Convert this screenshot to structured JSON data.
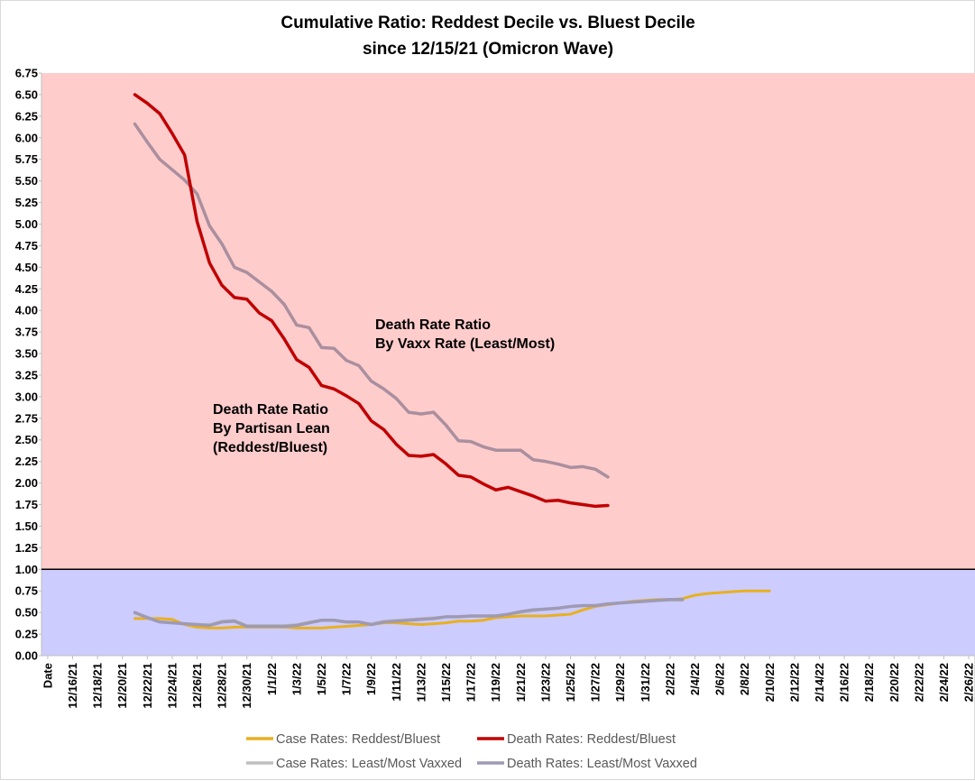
{
  "chart_data": {
    "type": "line",
    "title_line1": "Cumulative Ratio: Reddest Decile vs. Bluest Decile",
    "title_line2": "since 12/15/21 (Omicron Wave)",
    "ylim": [
      0,
      6.75
    ],
    "y_ticks": [
      "0.00",
      "0.25",
      "0.50",
      "0.75",
      "1.00",
      "1.25",
      "1.50",
      "1.75",
      "2.00",
      "2.25",
      "2.50",
      "2.75",
      "3.00",
      "3.25",
      "3.50",
      "3.75",
      "4.00",
      "4.25",
      "4.50",
      "4.75",
      "5.00",
      "5.25",
      "5.50",
      "5.75",
      "6.00",
      "6.25",
      "6.50",
      "6.75"
    ],
    "x_tick_labels": [
      "Date",
      "12/16/21",
      "12/18/21",
      "12/20/21",
      "12/22/21",
      "12/24/21",
      "12/26/21",
      "12/28/21",
      "12/30/21",
      "1/1/22",
      "1/3/22",
      "1/5/22",
      "1/7/22",
      "1/9/22",
      "1/11/22",
      "1/13/22",
      "1/15/22",
      "1/17/22",
      "1/19/22",
      "1/21/22",
      "1/23/22",
      "1/25/22",
      "1/27/22",
      "1/29/22",
      "1/31/22",
      "2/2/22",
      "2/4/22",
      "2/6/22",
      "2/8/22",
      "2/10/22",
      "2/12/22",
      "2/14/22",
      "2/16/22",
      "2/18/22",
      "2/20/22",
      "2/22/22",
      "2/24/22",
      "2/26/22"
    ],
    "category_count": 75,
    "threshold": 1.0,
    "region_colors": {
      "above": "#ffcccc",
      "below": "#ccccff"
    },
    "series": [
      {
        "name": "Case Rates: Reddest/Bluest",
        "color": "#e8b020",
        "start_index": 7,
        "values": [
          0.43,
          0.43,
          0.43,
          0.42,
          0.36,
          0.33,
          0.32,
          0.32,
          0.33,
          0.33,
          0.33,
          0.33,
          0.33,
          0.32,
          0.32,
          0.32,
          0.33,
          0.34,
          0.35,
          0.36,
          0.38,
          0.38,
          0.37,
          0.36,
          0.37,
          0.38,
          0.4,
          0.4,
          0.41,
          0.44,
          0.45,
          0.46,
          0.46,
          0.46,
          0.47,
          0.48,
          0.53,
          0.57,
          0.59,
          0.61,
          0.63,
          0.64,
          0.65,
          0.65,
          0.66,
          0.7,
          0.72,
          0.73,
          0.74,
          0.75,
          0.75,
          0.75
        ]
      },
      {
        "name": "Death Rates: Reddest/Bluest",
        "color": "#c00000",
        "start_index": 7,
        "values": [
          6.5,
          6.4,
          6.28,
          6.05,
          5.8,
          5.03,
          4.55,
          4.29,
          4.15,
          4.13,
          3.97,
          3.88,
          3.67,
          3.43,
          3.34,
          3.13,
          3.09,
          3.01,
          2.92,
          2.72,
          2.62,
          2.45,
          2.32,
          2.31,
          2.33,
          2.22,
          2.09,
          2.07,
          1.99,
          1.92,
          1.95,
          1.9,
          1.85,
          1.79,
          1.8,
          1.77,
          1.75,
          1.73,
          1.74
        ]
      },
      {
        "name": "Case Rates: Least/Most Vaxxed",
        "color": "#bfbfbf",
        "start_index": 7,
        "values": [
          0.49,
          0.45,
          0.39,
          0.38,
          0.37,
          0.36,
          0.36,
          0.4,
          0.41,
          0.35,
          0.35,
          0.35,
          0.35,
          0.36,
          0.39,
          0.41,
          0.41,
          0.39,
          0.39,
          0.37,
          0.4,
          0.41,
          0.42,
          0.43,
          0.44,
          0.45,
          0.45,
          0.46,
          0.46,
          0.46,
          0.48,
          0.5,
          0.52,
          0.54,
          0.55,
          0.57,
          0.58,
          0.58,
          0.6,
          0.61,
          0.62,
          0.63,
          0.64,
          0.64,
          0.64
        ]
      },
      {
        "name": "Death Rates: Least/Most Vaxxed",
        "color": "#aa8f9e",
        "start_index": 7,
        "values": [
          6.16,
          5.95,
          5.75,
          5.63,
          5.51,
          5.35,
          4.98,
          4.77,
          4.5,
          4.44,
          4.33,
          4.22,
          4.07,
          3.83,
          3.8,
          3.57,
          3.56,
          3.42,
          3.36,
          3.18,
          3.09,
          2.98,
          2.82,
          2.8,
          2.82,
          2.67,
          2.49,
          2.48,
          2.42,
          2.38,
          2.38,
          2.38,
          2.27,
          2.25,
          2.22,
          2.18,
          2.19,
          2.16,
          2.07
        ]
      },
      {
        "name": "Death Rates: Least/Most Vaxxed",
        "color": "#9e9ab5",
        "start_index": 7,
        "values": [
          0.5,
          0.44,
          0.39,
          0.38,
          0.37,
          0.36,
          0.35,
          0.39,
          0.4,
          0.34,
          0.34,
          0.34,
          0.34,
          0.35,
          0.38,
          0.41,
          0.41,
          0.39,
          0.39,
          0.36,
          0.39,
          0.4,
          0.41,
          0.42,
          0.43,
          0.45,
          0.45,
          0.46,
          0.46,
          0.46,
          0.48,
          0.51,
          0.53,
          0.54,
          0.55,
          0.57,
          0.58,
          0.58,
          0.6,
          0.61,
          0.62,
          0.63,
          0.64,
          0.65,
          0.65
        ]
      }
    ],
    "annotations": [
      {
        "lines": [
          "Death Rate Ratio",
          "By Vaxx Rate (Least/Most)"
        ]
      },
      {
        "lines": [
          "Death Rate Ratio",
          "By Partisan Lean",
          "(Reddest/Bluest)"
        ]
      }
    ],
    "legend": [
      {
        "label": "Case Rates: Reddest/Bluest",
        "color": "#e8b020"
      },
      {
        "label": "Death Rates: Reddest/Bluest",
        "color": "#c00000"
      },
      {
        "label": "Case Rates: Least/Most Vaxxed",
        "color": "#bfbfbf"
      },
      {
        "label": "Death Rates: Least/Most Vaxxed",
        "color": "#9e9ab5"
      }
    ],
    "legend_position": "bottom"
  }
}
